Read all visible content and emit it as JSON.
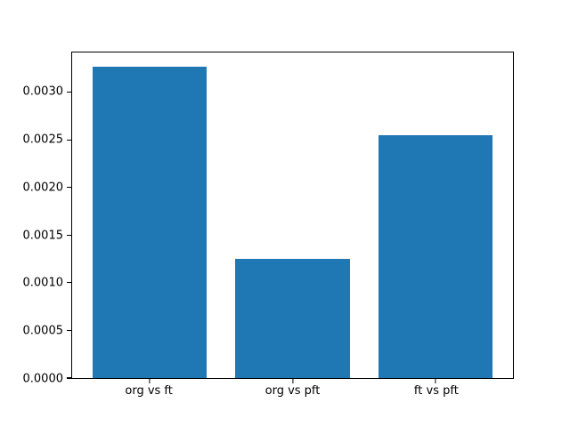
{
  "chart_data": {
    "type": "bar",
    "title": "",
    "xlabel": "",
    "ylabel": "",
    "categories": [
      "org vs ft",
      "org vs pft",
      "ft vs pft"
    ],
    "values": [
      0.00327,
      0.00125,
      0.00255
    ],
    "bar_color": "#1f77b4",
    "bar_width": 0.8,
    "xlim": [
      -0.54,
      2.54
    ],
    "ylim": [
      0,
      0.00342
    ],
    "yticks": [
      0.0,
      0.0005,
      0.001,
      0.0015,
      0.002,
      0.0025,
      0.003
    ],
    "ytick_labels": [
      "0.0000",
      "0.0005",
      "0.0010",
      "0.0015",
      "0.0020",
      "0.0025",
      "0.0030"
    ],
    "grid": false,
    "legend": "none",
    "background_color": "#ffffff",
    "spine_color": "#000000"
  }
}
